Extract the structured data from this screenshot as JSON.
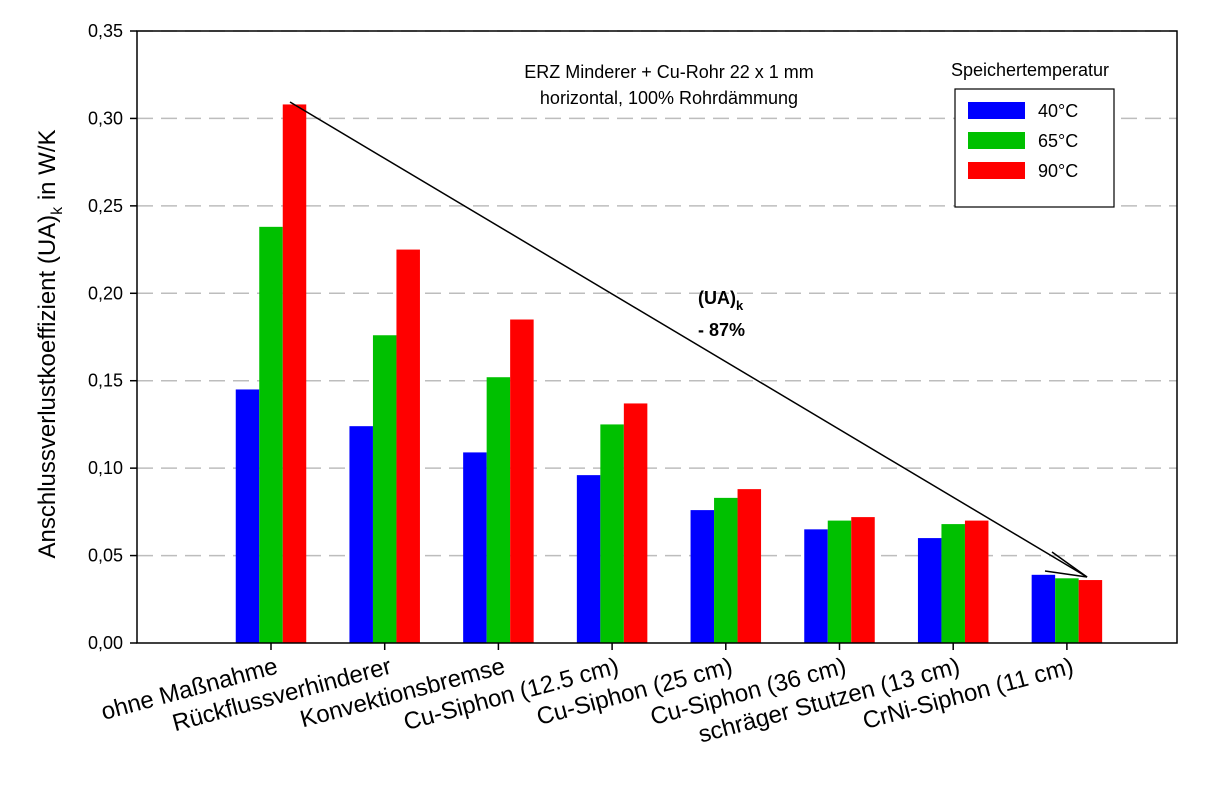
{
  "chart_data": {
    "type": "bar",
    "categories": [
      "ohne Maßnahme",
      "Rückflussverhinderer",
      "Konvektionsbremse",
      "Cu-Siphon (12.5 cm)",
      "Cu-Siphon  (25 cm)",
      "Cu-Siphon  (36 cm)",
      "schräger Stutzen (13 cm)",
      "CrNi-Siphon (11 cm)"
    ],
    "series": [
      {
        "name": "40°C",
        "color": "#0000ff",
        "values": [
          0.145,
          0.124,
          0.109,
          0.096,
          0.076,
          0.065,
          0.06,
          0.039
        ]
      },
      {
        "name": "65°C",
        "color": "#00c000",
        "values": [
          0.238,
          0.176,
          0.152,
          0.125,
          0.083,
          0.07,
          0.068,
          0.037
        ]
      },
      {
        "name": "90°C",
        "color": "#ff0000",
        "values": [
          0.308,
          0.225,
          0.185,
          0.137,
          0.088,
          0.072,
          0.07,
          0.036
        ]
      }
    ],
    "ylabel_main": "Anschlussverlustkoeffizient (UA)",
    "ylabel_sub": "k",
    "ylabel_tail": " in W/K",
    "ylim": [
      0,
      0.35
    ],
    "yticks": [
      "0,00",
      "0,05",
      "0,10",
      "0,15",
      "0,20",
      "0,25",
      "0,30",
      "0,35"
    ],
    "ytick_values": [
      0,
      0.05,
      0.1,
      0.15,
      0.2,
      0.25,
      0.3,
      0.35
    ],
    "grid": "horizontal dashed",
    "legend_title": "Speichertemperatur",
    "legend_position": "top-right",
    "annotation_lines": [
      "ERZ Minderer + Cu-Rohr 22 x 1 mm",
      "horizontal, 100% Rohrdämmung"
    ],
    "arrow_label_main": "(UA)",
    "arrow_label_sub": "k",
    "arrow_label_change": "- 87%"
  }
}
